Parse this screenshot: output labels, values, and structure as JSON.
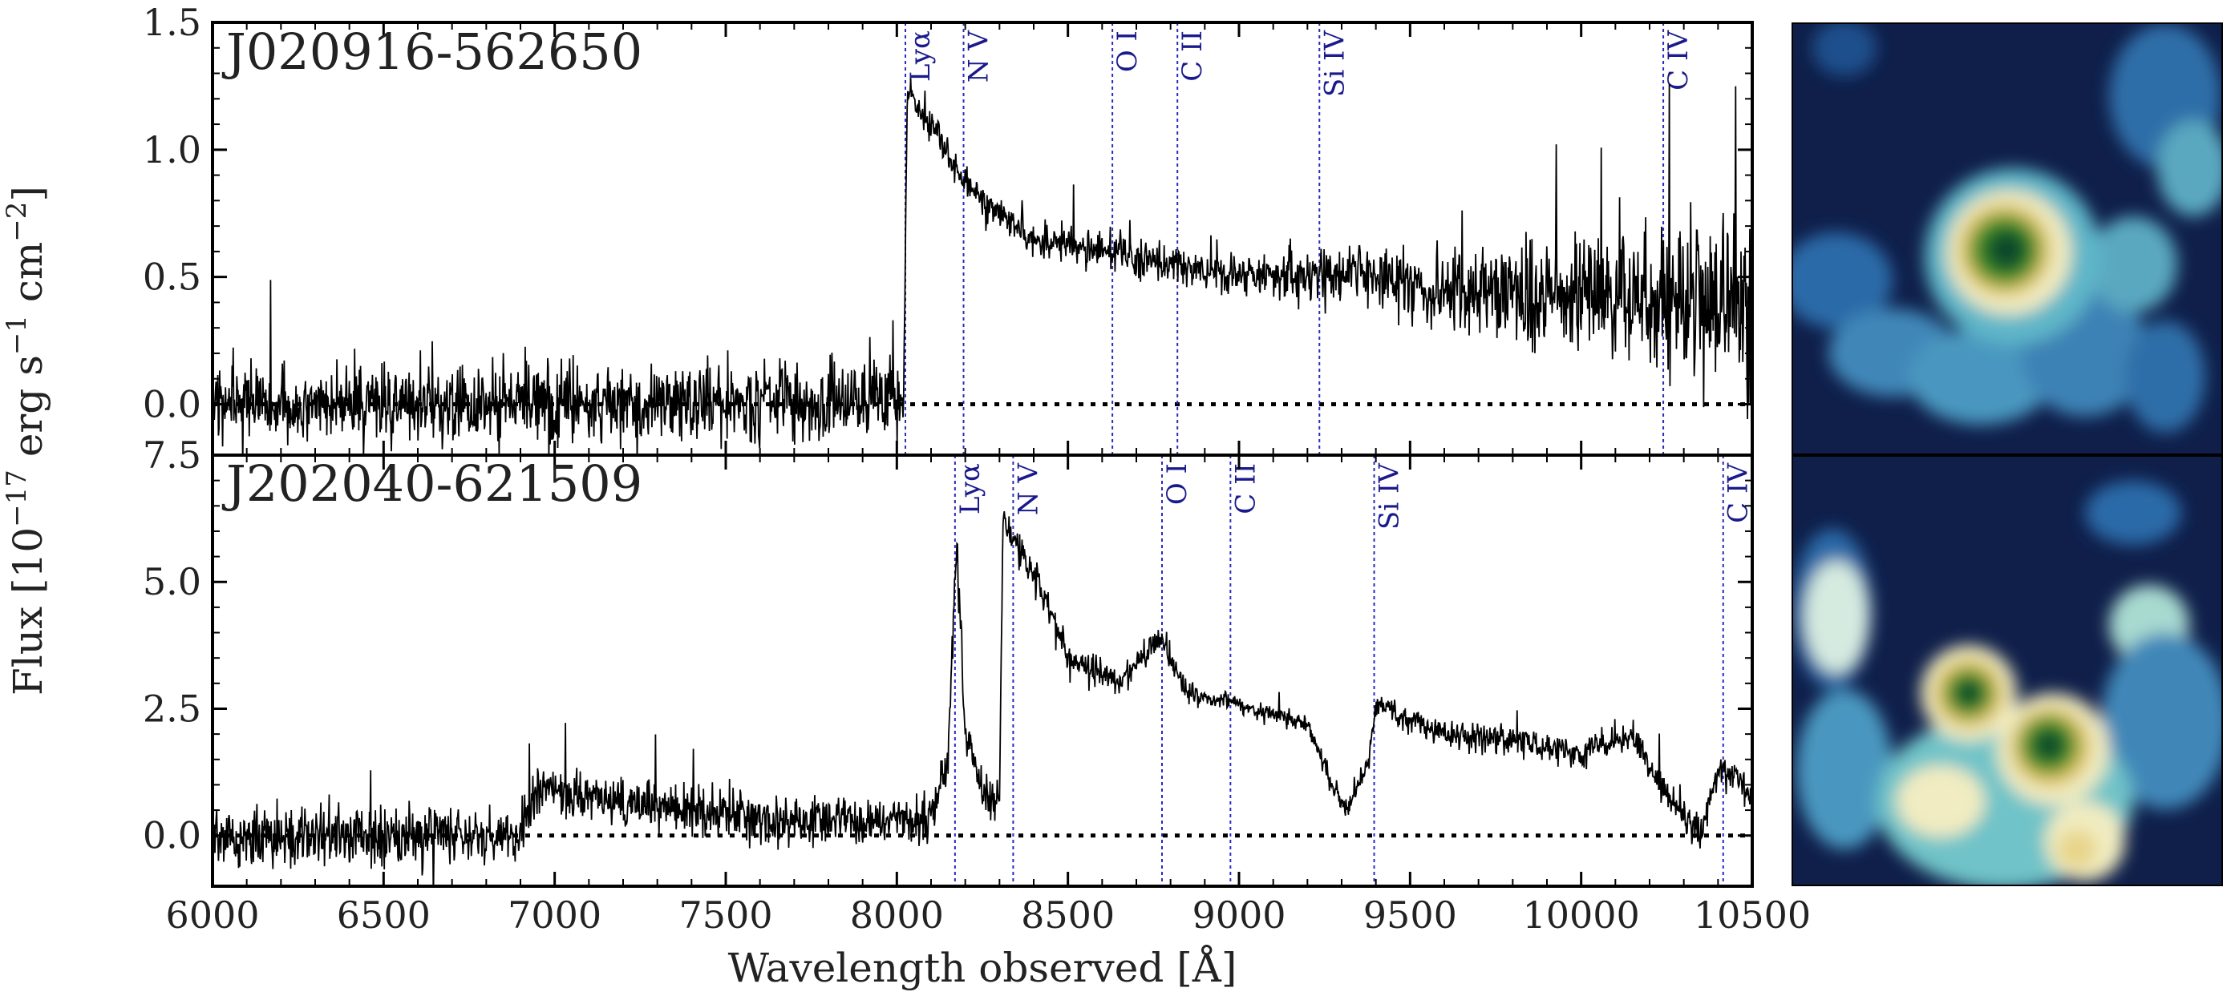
{
  "figure": {
    "ylabel_prefix": "Flux [10",
    "ylabel_exp1": "−17",
    "ylabel_mid": " erg s",
    "ylabel_exp2": "−1",
    "ylabel_mid2": " cm",
    "ylabel_exp3": "−2",
    "ylabel_suffix": "]",
    "xlabel": "Wavelength observed [Å]"
  },
  "chart_data": [
    {
      "type": "line",
      "object": "J020916-562650",
      "xlim": [
        6000,
        10500
      ],
      "ylim": [
        -0.2,
        1.5
      ],
      "yticks": [
        0.0,
        0.5,
        1.0,
        1.5
      ],
      "ytick_labels": [
        "0.0",
        "0.5",
        "1.0",
        "1.5"
      ],
      "zero_line": 0.0,
      "lya_break": 8025,
      "emission_lines": [
        {
          "label": "Lyα",
          "wavelength": 8025
        },
        {
          "label": "N V",
          "wavelength": 8195
        },
        {
          "label": "O I",
          "wavelength": 8630
        },
        {
          "label": "C II",
          "wavelength": 8820
        },
        {
          "label": "Si IV",
          "wavelength": 9235
        },
        {
          "label": "C IV",
          "wavelength": 10240
        }
      ],
      "continuum": [
        [
          6000,
          0.0
        ],
        [
          7400,
          0.0
        ],
        [
          8020,
          0.02
        ],
        [
          8030,
          1.2
        ],
        [
          8100,
          1.1
        ],
        [
          8200,
          0.85
        ],
        [
          8400,
          0.65
        ],
        [
          8700,
          0.58
        ],
        [
          9000,
          0.5
        ],
        [
          9300,
          0.52
        ],
        [
          9600,
          0.45
        ],
        [
          10000,
          0.42
        ],
        [
          10500,
          0.38
        ]
      ],
      "noise": [
        [
          6000,
          0.12
        ],
        [
          7400,
          0.13
        ],
        [
          8000,
          0.14
        ],
        [
          8030,
          0.05
        ],
        [
          9000,
          0.07
        ],
        [
          9500,
          0.12
        ],
        [
          10000,
          0.2
        ],
        [
          10500,
          0.3
        ]
      ]
    },
    {
      "type": "line",
      "object": "J202040-621509",
      "xlim": [
        6000,
        10500
      ],
      "ylim": [
        -1.0,
        7.5
      ],
      "yticks": [
        0.0,
        2.5,
        5.0,
        7.5
      ],
      "ytick_labels": [
        "0.0",
        "2.5",
        "5.0",
        "7.5"
      ],
      "zero_line": 0.0,
      "xticks": [
        6000,
        6500,
        7000,
        7500,
        8000,
        8500,
        9000,
        9500,
        10000,
        10500
      ],
      "xtick_labels": [
        "6000",
        "6500",
        "7000",
        "7500",
        "8000",
        "8500",
        "9000",
        "9500",
        "10000",
        "10500"
      ],
      "emission_lines": [
        {
          "label": "Lyα",
          "wavelength": 8170
        },
        {
          "label": "N V",
          "wavelength": 8340
        },
        {
          "label": "O I",
          "wavelength": 8775
        },
        {
          "label": "C II",
          "wavelength": 8975
        },
        {
          "label": "Si IV",
          "wavelength": 9395
        },
        {
          "label": "C IV",
          "wavelength": 10415
        }
      ],
      "continuum": [
        [
          6000,
          0.0
        ],
        [
          6900,
          0.0
        ],
        [
          6950,
          0.9
        ],
        [
          7300,
          0.6
        ],
        [
          7600,
          0.3
        ],
        [
          8100,
          0.3
        ],
        [
          8150,
          1.5
        ],
        [
          8175,
          5.8
        ],
        [
          8200,
          2.0
        ],
        [
          8250,
          0.8
        ],
        [
          8300,
          0.6
        ],
        [
          8310,
          6.2
        ],
        [
          8340,
          5.8
        ],
        [
          8400,
          5.2
        ],
        [
          8500,
          3.5
        ],
        [
          8650,
          3.0
        ],
        [
          8770,
          3.9
        ],
        [
          8850,
          2.8
        ],
        [
          9000,
          2.6
        ],
        [
          9200,
          2.2
        ],
        [
          9270,
          1.0
        ],
        [
          9320,
          0.5
        ],
        [
          9380,
          1.5
        ],
        [
          9400,
          2.6
        ],
        [
          9600,
          2.0
        ],
        [
          9800,
          1.9
        ],
        [
          10000,
          1.6
        ],
        [
          10150,
          2.0
        ],
        [
          10250,
          0.8
        ],
        [
          10350,
          0.0
        ],
        [
          10400,
          1.3
        ],
        [
          10500,
          0.9
        ]
      ],
      "noise": [
        [
          6000,
          0.5
        ],
        [
          6900,
          0.45
        ],
        [
          7600,
          0.4
        ],
        [
          8100,
          0.35
        ],
        [
          8400,
          0.3
        ],
        [
          9000,
          0.15
        ],
        [
          10500,
          0.3
        ]
      ]
    }
  ],
  "cutouts": [
    {
      "object": "J020916-562650",
      "colormap": "dark-blue-to-yellow-to-green"
    },
    {
      "object": "J202040-621509",
      "colormap": "dark-blue-to-yellow-to-green"
    }
  ]
}
